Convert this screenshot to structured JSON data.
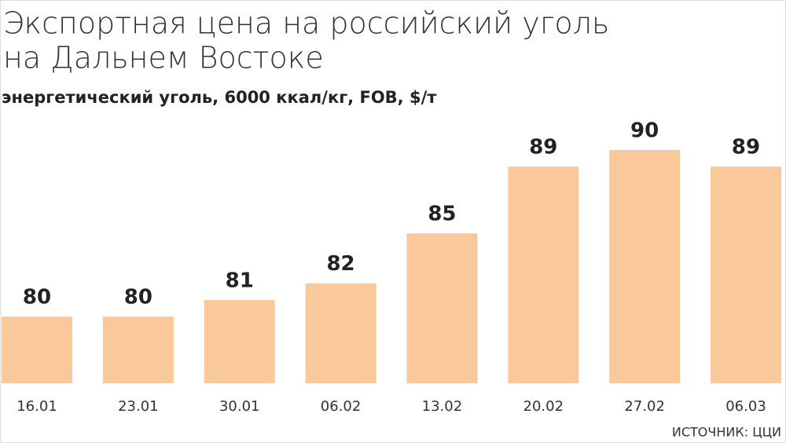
{
  "chart_data": {
    "type": "bar",
    "title": [
      "Экспортная цена на российский уголь",
      "на Дальнем Востоке"
    ],
    "subtitle": "энергетический уголь, 6000 ккал/кг, FOB, $/т",
    "categories": [
      "16.01",
      "23.01",
      "30.01",
      "06.02",
      "13.02",
      "20.02",
      "27.02",
      "06.03"
    ],
    "values": [
      80,
      80,
      81,
      82,
      85,
      89,
      90,
      89
    ],
    "color": "#f9c99b",
    "ylim": [
      76,
      90
    ],
    "source": "ИСТОЧНИК: ЦЦИ"
  }
}
